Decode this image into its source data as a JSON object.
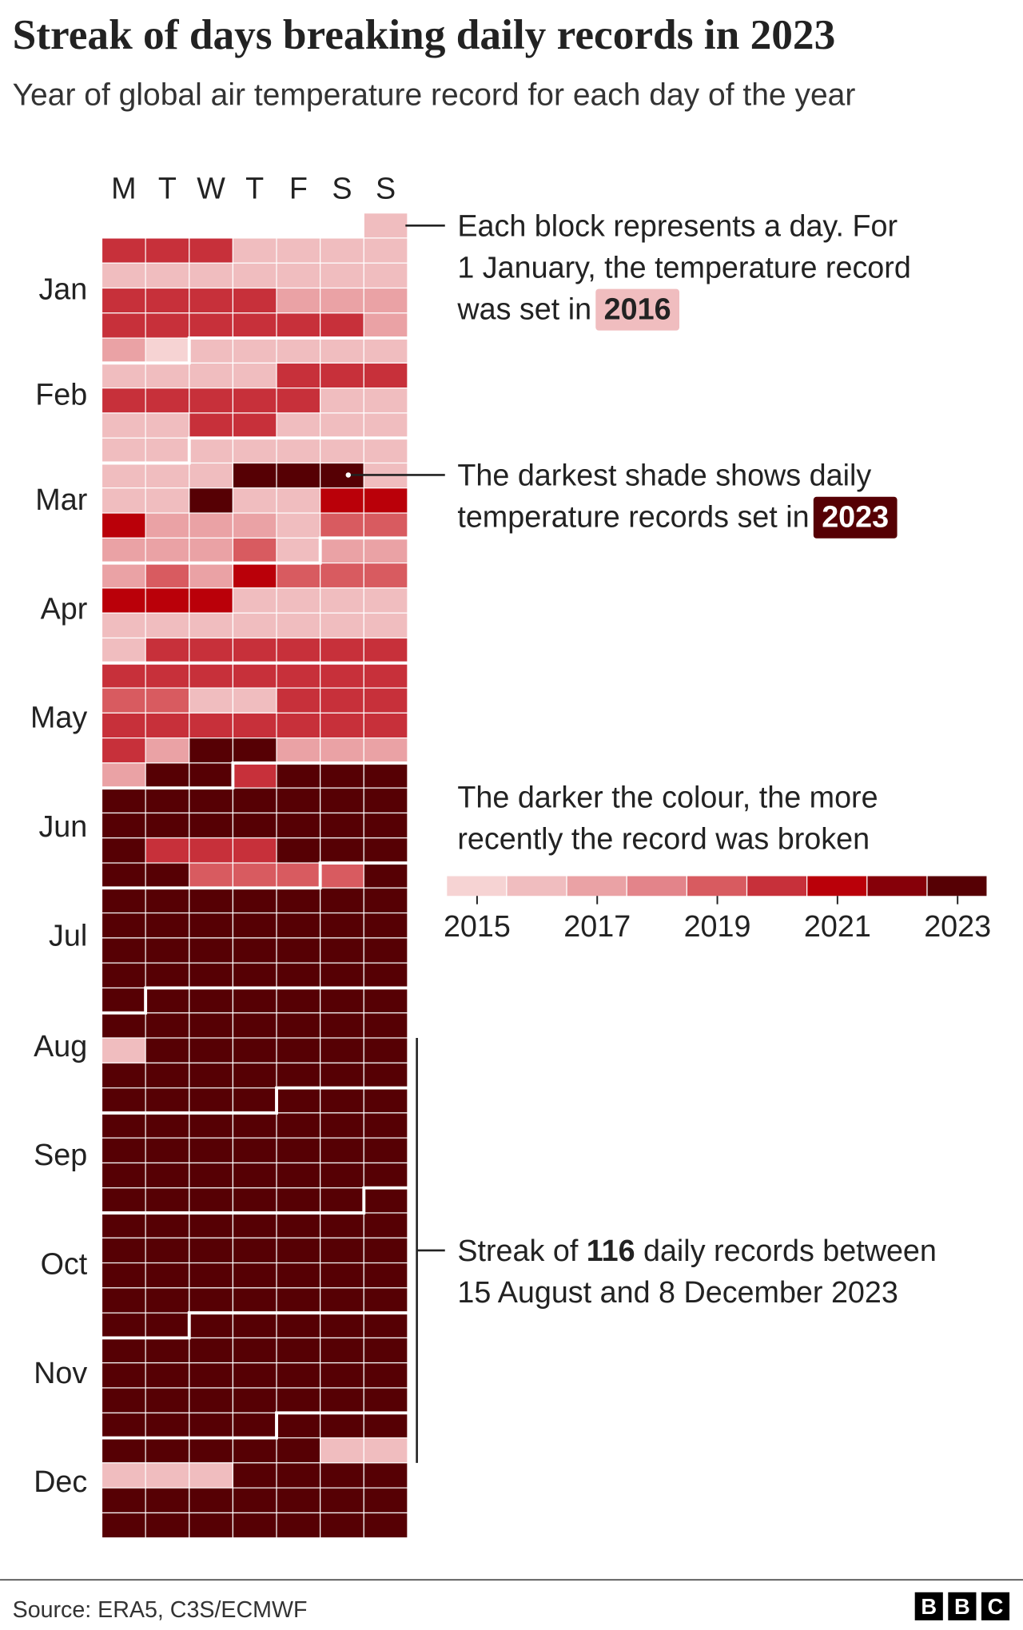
{
  "chart_data": {
    "type": "calendar-heatmap",
    "title": "Streak of days breaking daily records in 2023",
    "subtitle": "Year of global air temperature record for each day of the year",
    "weekdays": [
      "M",
      "T",
      "W",
      "T",
      "F",
      "S",
      "S"
    ],
    "months": [
      "Jan",
      "Feb",
      "Mar",
      "Apr",
      "May",
      "Jun",
      "Jul",
      "Aug",
      "Sep",
      "Oct",
      "Nov",
      "Dec"
    ],
    "values": [
      2016,
      2020,
      2020,
      2020,
      2016,
      2016,
      2016,
      2016,
      2016,
      2016,
      2016,
      2016,
      2016,
      2016,
      2016,
      2020,
      2020,
      2020,
      2020,
      2017,
      2017,
      2017,
      2020,
      2020,
      2020,
      2020,
      2020,
      2020,
      2017,
      2017,
      2015,
      2016,
      2016,
      2016,
      2016,
      2016,
      2016,
      2016,
      2016,
      2016,
      2020,
      2020,
      2020,
      2020,
      2020,
      2020,
      2020,
      2020,
      2016,
      2016,
      2016,
      2016,
      2020,
      2020,
      2016,
      2016,
      2016,
      2016,
      2016,
      2016,
      2016,
      2016,
      2016,
      2016,
      2016,
      2016,
      2016,
      2023,
      2023,
      2023,
      2016,
      2016,
      2016,
      2023,
      2016,
      2016,
      2021,
      2021,
      2021,
      2017,
      2017,
      2017,
      2016,
      2019,
      2019,
      2017,
      2017,
      2017,
      2019,
      2016,
      2017,
      2017,
      2017,
      2019,
      2017,
      2021,
      2019,
      2019,
      2019,
      2021,
      2021,
      2021,
      2016,
      2016,
      2016,
      2016,
      2016,
      2016,
      2016,
      2016,
      2016,
      2016,
      2016,
      2016,
      2020,
      2020,
      2020,
      2020,
      2020,
      2020,
      2020,
      2020,
      2020,
      2020,
      2020,
      2020,
      2020,
      2019,
      2019,
      2016,
      2016,
      2020,
      2020,
      2020,
      2020,
      2020,
      2020,
      2020,
      2020,
      2020,
      2020,
      2020,
      2017,
      2023,
      2023,
      2017,
      2017,
      2017,
      2017,
      2023,
      2023,
      2020,
      2023,
      2023,
      2023,
      2023,
      2023,
      2023,
      2023,
      2023,
      2023,
      2023,
      2023,
      2023,
      2023,
      2023,
      2023,
      2023,
      2023,
      2023,
      2020,
      2020,
      2020,
      2023,
      2023,
      2023,
      2023,
      2023,
      2019,
      2019,
      2019,
      2019,
      2023,
      2023,
      2023,
      2023,
      2023,
      2023,
      2023,
      2023,
      2023,
      2023,
      2023,
      2023,
      2023,
      2023,
      2023,
      2023,
      2023,
      2023,
      2023,
      2023,
      2023,
      2023,
      2023,
      2023,
      2023,
      2023,
      2023,
      2023,
      2023,
      2023,
      2023,
      2023,
      2023,
      2023,
      2023,
      2023,
      2023,
      2023,
      2023,
      2023,
      2023,
      2023,
      2023,
      2016,
      2023,
      2023,
      2023,
      2023,
      2023,
      2023,
      2023,
      2023,
      2023,
      2023,
      2023,
      2023,
      2023,
      2023,
      2023,
      2023,
      2023,
      2023,
      2023,
      2023,
      2023,
      2023,
      2023,
      2023,
      2023,
      2023,
      2023,
      2023,
      2023,
      2023,
      2023,
      2023,
      2023,
      2023,
      2023,
      2023,
      2023,
      2023,
      2023,
      2023,
      2023,
      2023,
      2023,
      2023,
      2023,
      2023,
      2023,
      2023,
      2023,
      2023,
      2023,
      2023,
      2023,
      2023,
      2023,
      2023,
      2023,
      2023,
      2023,
      2023,
      2023,
      2023,
      2023,
      2023,
      2023,
      2023,
      2023,
      2023,
      2023,
      2023,
      2023,
      2023,
      2023,
      2023,
      2023,
      2023,
      2023,
      2023,
      2023,
      2023,
      2023,
      2023,
      2023,
      2023,
      2023,
      2023,
      2023,
      2023,
      2023,
      2023,
      2023,
      2023,
      2023,
      2023,
      2023,
      2023,
      2023,
      2023,
      2023,
      2023,
      2023,
      2023,
      2023,
      2023,
      2023,
      2023,
      2023,
      2023,
      2023,
      2023,
      2023,
      2023,
      2023,
      2023,
      2023,
      2023,
      2016,
      2016,
      2016,
      2016,
      2016,
      2023,
      2023,
      2023,
      2023,
      2023,
      2023,
      2023,
      2023,
      2023,
      2023,
      2023,
      2023,
      2023,
      2023,
      2023,
      2023,
      2023,
      2023
    ],
    "legend": {
      "title": [
        "The darker the colour, the more",
        "recently the record was broken"
      ],
      "years": [
        2015,
        2016,
        2017,
        2018,
        2019,
        2020,
        2021,
        2022,
        2023
      ],
      "colors": [
        "#f6d3d3",
        "#f0bdbf",
        "#eaa2a5",
        "#e3848a",
        "#d85b60",
        "#c7303a",
        "#ba0009",
        "#860009",
        "#560004"
      ],
      "ticks": [
        2015,
        2017,
        2019,
        2021,
        2023
      ]
    },
    "annotations": [
      {
        "lines": [
          "Each block represents a day. For",
          "1 January, the temperature record",
          "was set in"
        ],
        "highlight": 2016
      },
      {
        "lines": [
          "The darkest shade shows daily",
          "temperature records set in"
        ],
        "highlight": 2023
      }
    ],
    "streak": {
      "before": "Streak of",
      "count": 116,
      "after": "daily records between",
      "line2": "15 August and 8 December 2023"
    },
    "source": "Source: ERA5, C3S/ECMWF",
    "logo": [
      "B",
      "B",
      "C"
    ]
  }
}
